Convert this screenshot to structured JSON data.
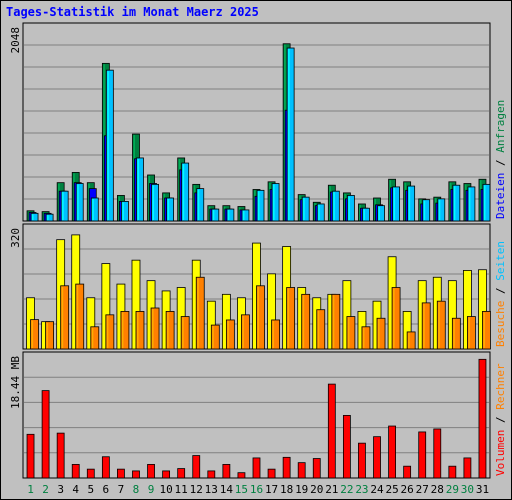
{
  "chart_data": {
    "type": "bar",
    "title": "Tages-Statistik im Monat Maerz 2025",
    "x": [
      "1",
      "2",
      "3",
      "4",
      "5",
      "6",
      "7",
      "8",
      "9",
      "10",
      "11",
      "12",
      "13",
      "14",
      "15",
      "16",
      "17",
      "18",
      "19",
      "20",
      "21",
      "22",
      "23",
      "24",
      "25",
      "26",
      "27",
      "28",
      "29",
      "30",
      "31"
    ],
    "weekend_days": [
      "1",
      "2",
      "8",
      "9",
      "15",
      "16",
      "22",
      "23",
      "29",
      "30"
    ],
    "panels": [
      {
        "name": "hits",
        "ylabel": "2048",
        "ymax": 2300,
        "legend": [
          "Anfragen",
          "Dateien"
        ],
        "series": [
          {
            "name": "Anfragen",
            "color": "#008040",
            "values": [
              120,
              110,
              450,
              570,
              450,
              1850,
              300,
              1020,
              540,
              330,
              740,
              430,
              180,
              180,
              170,
              370,
              460,
              2080,
              310,
              220,
              420,
              330,
              200,
              270,
              490,
              460,
              260,
              280,
              460,
              440,
              490
            ]
          },
          {
            "name": "Dateien",
            "color": "#0000ff",
            "values": [
              100,
              90,
              350,
              450,
              380,
              1000,
              230,
              730,
              440,
              270,
              600,
              330,
              140,
              140,
              130,
              290,
              370,
              1300,
              250,
              180,
              340,
              260,
              150,
              190,
              390,
              360,
              200,
              210,
              370,
              360,
              370
            ]
          },
          {
            "name": "Seiten",
            "color": "#00c0ff",
            "values": [
              90,
              80,
              350,
              440,
              270,
              1770,
              230,
              740,
              430,
              270,
              680,
              380,
              140,
              140,
              130,
              360,
              440,
              2030,
              280,
              200,
              350,
              300,
              150,
              180,
              400,
              410,
              250,
              260,
              420,
              400,
              430
            ]
          }
        ]
      },
      {
        "name": "visits",
        "ylabel": "320",
        "ymax": 360,
        "legend": [
          "Seiten",
          "Besuche"
        ],
        "series": [
          {
            "name": "Besuche",
            "color": "#ffff00",
            "values": [
              150,
              80,
              320,
              334,
              150,
              250,
              190,
              260,
              200,
              170,
              180,
              260,
              140,
              160,
              150,
              310,
              220,
              300,
              180,
              150,
              160,
              200,
              110,
              140,
              270,
              110,
              200,
              210,
              200,
              230,
              232
            ]
          },
          {
            "name": "Seiten",
            "color": "#ff8000",
            "values": [
              86,
              80,
              185,
              190,
              65,
              100,
              110,
              110,
              120,
              110,
              95,
              210,
              70,
              85,
              100,
              185,
              85,
              180,
              160,
              115,
              160,
              95,
              65,
              90,
              180,
              50,
              135,
              140,
              90,
              95,
              110
            ]
          }
        ]
      },
      {
        "name": "volume",
        "ylabel": "18.44 MB",
        "ymax": 21,
        "legend": [
          "Rechner",
          "Volumen"
        ],
        "series": [
          {
            "name": "Volumen",
            "color": "#ff0000",
            "values": [
              7.4,
              14.8,
              7.6,
              2.3,
              1.5,
              3.6,
              1.5,
              1.2,
              2.3,
              1.2,
              1.6,
              3.8,
              1.2,
              2.3,
              0.9,
              3.4,
              1.5,
              3.5,
              2.6,
              3.3,
              15.9,
              10.6,
              5.9,
              7.0,
              8.8,
              2.0,
              7.8,
              8.3,
              2.0,
              3.4,
              20.1
            ]
          }
        ]
      }
    ]
  }
}
